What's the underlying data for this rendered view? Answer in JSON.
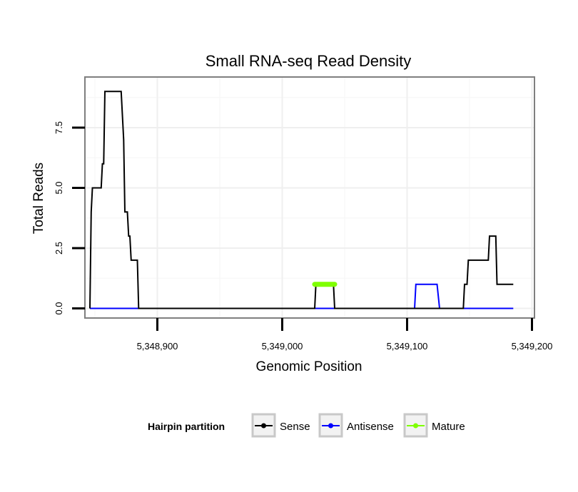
{
  "chart_data": {
    "type": "line",
    "title": "Small RNA-seq Read Density",
    "xlabel": "Genomic Position",
    "ylabel": "Total Reads",
    "xlim": [
      5348842,
      5349202
    ],
    "ylim": [
      -0.4,
      9.6
    ],
    "x_ticks": [
      {
        "value": 5348900,
        "label": "5,348,900"
      },
      {
        "value": 5349000,
        "label": "5,349,000"
      },
      {
        "value": 5349100,
        "label": "5,349,100"
      },
      {
        "value": 5349200,
        "label": "5,349,200"
      }
    ],
    "y_ticks": [
      {
        "value": 0,
        "label": "0.0"
      },
      {
        "value": 2.5,
        "label": "2.5"
      },
      {
        "value": 5,
        "label": "5.0"
      },
      {
        "value": 7.5,
        "label": "7.5"
      }
    ],
    "grid": true,
    "legend": {
      "title": "Hairpin partition",
      "position": "bottom",
      "entries": [
        "Sense",
        "Antisense",
        "Mature"
      ]
    },
    "series": [
      {
        "name": "Sense",
        "color": "#000000",
        "x": [
          5348846,
          5348847,
          5348848,
          5348855,
          5348856,
          5348857,
          5348858,
          5348871,
          5348873,
          5348874,
          5348876,
          5348877,
          5348878,
          5348879,
          5348880,
          5348884,
          5348885,
          5349026,
          5349027,
          5349041,
          5349042,
          5349145,
          5349146,
          5349148,
          5349149,
          5349165,
          5349166,
          5349171,
          5349172,
          5349174,
          5349185
        ],
        "y": [
          0,
          4,
          5,
          5,
          6,
          6,
          9,
          9,
          7,
          4,
          4,
          3,
          3,
          2,
          2,
          2,
          0,
          0,
          1,
          1,
          0,
          0,
          1,
          1,
          2,
          2,
          3,
          3,
          1,
          1,
          1
        ]
      },
      {
        "name": "Antisense",
        "color": "#0000ff",
        "x": [
          5348846,
          5349106,
          5349107,
          5349124,
          5349126,
          5349185
        ],
        "y": [
          0,
          0,
          1,
          1,
          0,
          0
        ]
      },
      {
        "name": "Mature",
        "color": "#7fff00",
        "x": [
          5349026,
          5349042
        ],
        "y": [
          1,
          1
        ]
      }
    ]
  }
}
